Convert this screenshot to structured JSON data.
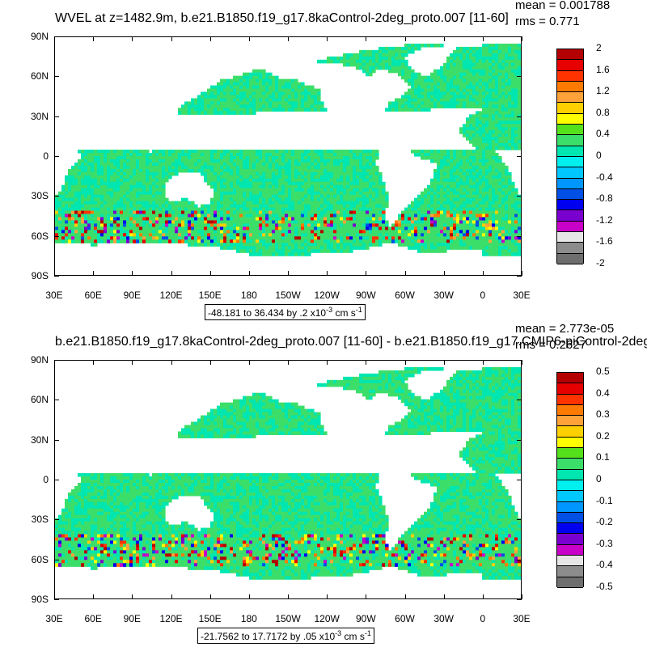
{
  "panels": [
    {
      "title": "WVEL at z=1482.9m, b.e21.B1850.f19_g17.8kaControl-2deg_proto.007 [11-60]",
      "stats": {
        "mean": "mean = 0.001788",
        "rms": "rms = 0.771"
      },
      "range_text": "-48.181 to 36.434 by .2 x10",
      "range_exp": "-3",
      "range_unit": " cm s",
      "range_unit_exp": "-1",
      "colorbar": {
        "labels": [
          "2",
          "1.6",
          "1.2",
          "0.8",
          "0.4",
          "0",
          "-0.4",
          "-0.8",
          "-1.2",
          "-1.6",
          "-2"
        ],
        "colors": [
          "#b40000",
          "#e60000",
          "#ff3300",
          "#ff7a00",
          "#ffa23a",
          "#ffd000",
          "#ffff00",
          "#55e01c",
          "#3cde6a",
          "#00e6b0",
          "#00f0f0",
          "#00c8ff",
          "#0096ff",
          "#0050e6",
          "#0000f0",
          "#7a00d0",
          "#c800c8",
          "#e6e6e6",
          "#8c8c8c",
          "#6e6e6e"
        ]
      }
    },
    {
      "title": "b.e21.B1850.f19_g17.8kaControl-2deg_proto.007 [11-60] - b.e21.B1850.f19_g17.CMIP6-piControl-2deg",
      "stats": {
        "mean": "mean = 2.773e-05",
        "rms": "rms = 0.2627"
      },
      "range_text": "-21.7562 to 17.7172 by .05 x10",
      "range_exp": "-3",
      "range_unit": " cm s",
      "range_unit_exp": "-1",
      "colorbar": {
        "labels": [
          "0.5",
          "0.4",
          "0.3",
          "0.2",
          "0.1",
          "0",
          "-0.1",
          "-0.2",
          "-0.3",
          "-0.4",
          "-0.5"
        ],
        "colors": [
          "#b40000",
          "#e60000",
          "#ff3300",
          "#ff7a00",
          "#ffa23a",
          "#ffd000",
          "#ffff00",
          "#55e01c",
          "#3cde6a",
          "#00e6b0",
          "#00f0f0",
          "#00c8ff",
          "#0096ff",
          "#0050e6",
          "#0000f0",
          "#7a00d0",
          "#c800c8",
          "#e6e6e6",
          "#8c8c8c",
          "#6e6e6e"
        ]
      }
    }
  ],
  "lat_labels": [
    "90N",
    "60N",
    "30N",
    "0",
    "30S",
    "60S",
    "90S"
  ],
  "lon_labels": [
    "30E",
    "60E",
    "90E",
    "120E",
    "150E",
    "180",
    "150W",
    "120W",
    "90W",
    "60W",
    "30W",
    "0",
    "30E"
  ],
  "field_colors": {
    "ocean": "#3cde6a",
    "ocean_alt": "#00e6b0",
    "land": "#ffffff"
  }
}
